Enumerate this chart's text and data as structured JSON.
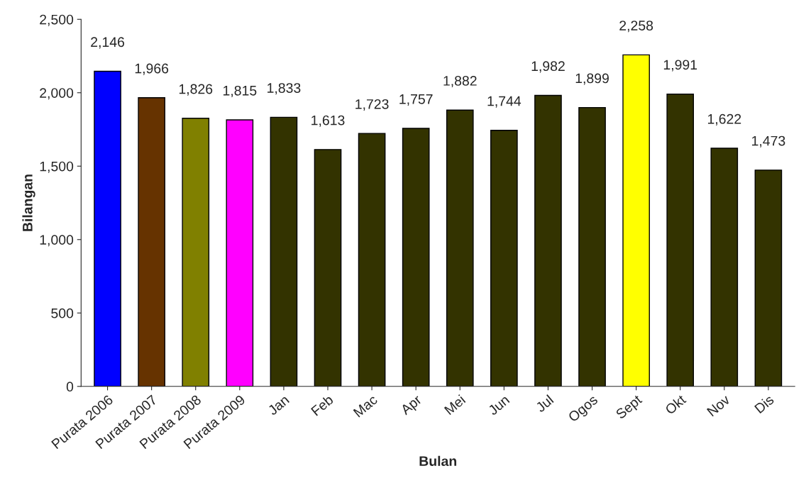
{
  "chart_data": {
    "type": "bar",
    "xlabel": "Bulan",
    "ylabel": "Bilangan",
    "categories": [
      "Purata 2006",
      "Purata 2007",
      "Purata 2008",
      "Purata 2009",
      "Jan",
      "Feb",
      "Mac",
      "Apr",
      "Mei",
      "Jun",
      "Jul",
      "Ogos",
      "Sept",
      "Okt",
      "Nov",
      "Dis"
    ],
    "values": [
      2146,
      1966,
      1826,
      1815,
      1833,
      1613,
      1723,
      1757,
      1882,
      1744,
      1982,
      1899,
      2258,
      1991,
      1622,
      1473
    ],
    "value_labels": [
      "2,146",
      "1,966",
      "1,826",
      "1,815",
      "1,833",
      "1,613",
      "1,723",
      "1,757",
      "1,882",
      "1,744",
      "1,982",
      "1,899",
      "2,258",
      "1,991",
      "1,622",
      "1,473"
    ],
    "colors": [
      "#0000ff",
      "#663300",
      "#808000",
      "#ff00ff",
      "#333300",
      "#333300",
      "#333300",
      "#333300",
      "#333300",
      "#333300",
      "#333300",
      "#333300",
      "#ffff00",
      "#333300",
      "#333300",
      "#333300"
    ],
    "ylim": [
      0,
      2500
    ],
    "yticks": [
      0,
      {
        "value": 500,
        "label": "500"
      },
      {
        "value": 1000,
        "label": "1,000"
      },
      {
        "value": 1500,
        "label": "1,500"
      },
      {
        "value": 2000,
        "label": "2,000"
      },
      {
        "value": 2500,
        "label": "2,500"
      }
    ],
    "grid": false,
    "legend": false
  }
}
